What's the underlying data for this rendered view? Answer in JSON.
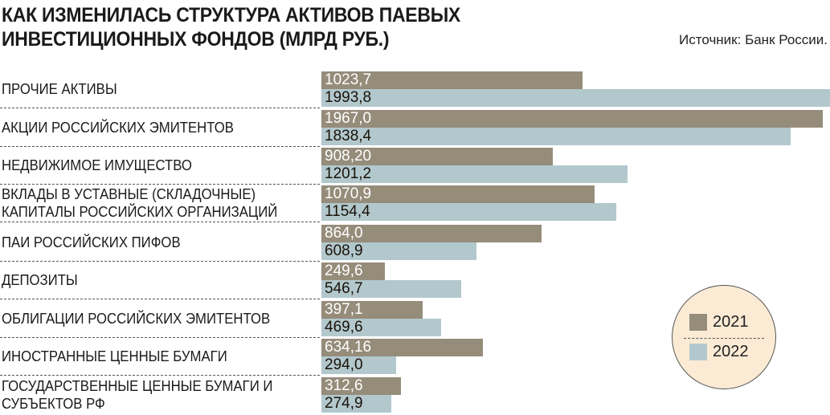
{
  "title": "КАК ИЗМЕНИЛАСЬ СТРУКТУРА АКТИВОВ ПАЕВЫХ ИНВЕСТИЦИОННЫХ ФОНДОВ (МЛРД РУБ.)",
  "source": "Источник: Банк России.",
  "chart_data": {
    "type": "bar",
    "orientation": "horizontal",
    "title": "КАК ИЗМЕНИЛАСЬ СТРУКТУРА АКТИВОВ ПАЕВЫХ ИНВЕСТИЦИОННЫХ ФОНДОВ (МЛРД РУБ.)",
    "categories": [
      "ПРОЧИЕ АКТИВЫ",
      "АКЦИИ РОССИЙСКИХ ЭМИТЕНТОВ",
      "НЕДВИЖИМОЕ ИМУЩЕСТВО",
      "ВКЛАДЫ В УСТАВНЫЕ (СКЛАДОЧНЫЕ) КАПИТАЛЫ РОССИЙСКИХ ОРГАНИЗАЦИЙ",
      "ПАИ РОССИЙСКИХ ПИФОВ",
      "ДЕПОЗИТЫ",
      "ОБЛИГАЦИИ РОССИЙСКИХ ЭМИТЕНТОВ",
      "ИНОСТРАННЫЕ ЦЕННЫЕ БУМАГИ",
      "ГОСУДАРСТВЕННЫЕ ЦЕННЫЕ БУМАГИ И СУБЪЕКТОВ РФ"
    ],
    "series": [
      {
        "name": "2021",
        "color": "#958c7a",
        "values": [
          1023.7,
          1967.0,
          908.2,
          1070.9,
          864.0,
          249.6,
          397.1,
          634.16,
          312.6
        ],
        "labels": [
          "1023,7",
          "1967,0",
          "908,20",
          "1070,9",
          "864,0",
          "249,6",
          "397,1",
          "634,16",
          "312,6"
        ]
      },
      {
        "name": "2022",
        "color": "#b2c8cd",
        "values": [
          1993.8,
          1838.4,
          1201.2,
          1154.4,
          608.9,
          546.7,
          469.6,
          294.0,
          274.9
        ],
        "labels": [
          "1993,8",
          "1838,4",
          "1201,2",
          "1154,4",
          "608,9",
          "546,7",
          "469,6",
          "294,0",
          "274,9"
        ]
      }
    ],
    "legend": "bottom-right",
    "grid": false
  }
}
